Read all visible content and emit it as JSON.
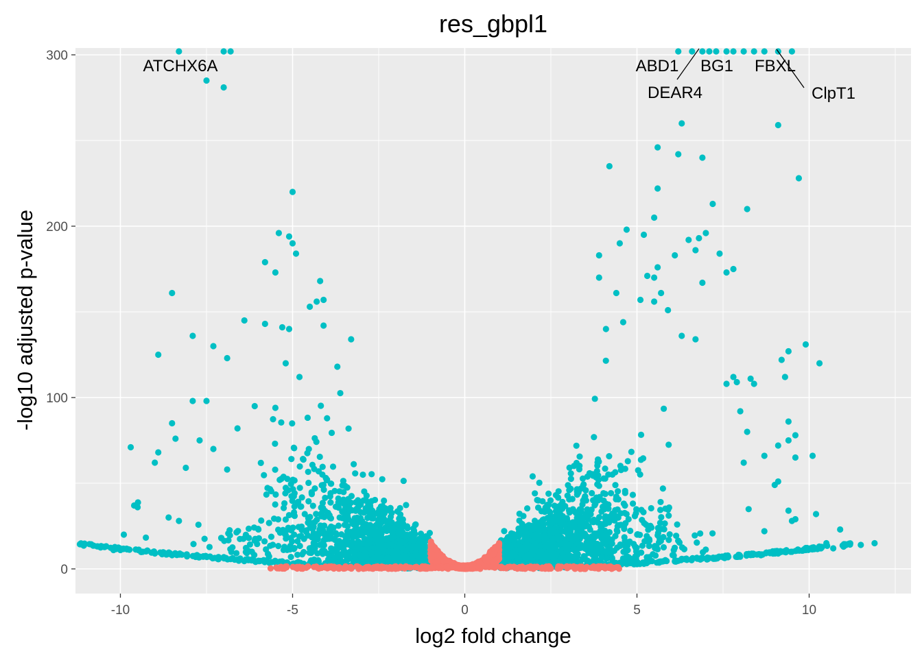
{
  "chart_data": {
    "type": "scatter",
    "title": "res_gbpl1",
    "xlabel": "log2 fold change",
    "ylabel": "-log10 adjusted p-value",
    "xlim": [
      -11.3,
      12.5
    ],
    "ylim": [
      -14,
      302
    ],
    "x_ticks": [
      -10,
      -5,
      0,
      5,
      10
    ],
    "x_tick_labels": [
      "-10",
      "-5",
      "0",
      "5",
      "10"
    ],
    "y_ticks": [
      0,
      100,
      200,
      300
    ],
    "y_tick_labels": [
      "0",
      "100",
      "200",
      "300"
    ],
    "grid": true,
    "legend": "none",
    "colors": {
      "significant": "#00BFC4",
      "not_significant": "#F8766D",
      "panel_background": "#EBEBEB",
      "grid_line": "#FFFFFF"
    },
    "labeled_points": [
      {
        "label": "ATCHX6A",
        "x": -8.2,
        "y": 304
      },
      {
        "label": "ABD1",
        "x": 6.9,
        "y": 304
      },
      {
        "label": "DEAR4",
        "x": 6.8,
        "y": 304
      },
      {
        "label": "BG1",
        "x": 7.2,
        "y": 304
      },
      {
        "label": "FBXL",
        "x": 9.1,
        "y": 304
      },
      {
        "label": "ClpT1",
        "x": 9.1,
        "y": 304
      }
    ],
    "significant_points": [
      [
        -7.5,
        285
      ],
      [
        -7.0,
        281
      ],
      [
        -5.0,
        220
      ],
      [
        -5.4,
        196
      ],
      [
        -5.1,
        194
      ],
      [
        -5.0,
        190
      ],
      [
        -4.9,
        184
      ],
      [
        -5.8,
        179
      ],
      [
        -5.5,
        173
      ],
      [
        -4.2,
        168
      ],
      [
        -8.5,
        161
      ],
      [
        -4.1,
        157
      ],
      [
        -4.3,
        156
      ],
      [
        -4.5,
        153
      ],
      [
        -6.4,
        145
      ],
      [
        -5.8,
        143
      ],
      [
        -4.1,
        142
      ],
      [
        -5.3,
        141
      ],
      [
        -5.1,
        140
      ],
      [
        -7.9,
        136
      ],
      [
        -3.3,
        134
      ],
      [
        -7.3,
        130
      ],
      [
        -6.9,
        123
      ],
      [
        -8.9,
        125
      ],
      [
        -4.8,
        112
      ],
      [
        -3.7,
        118
      ],
      [
        -5.2,
        120
      ],
      [
        -7.9,
        98
      ],
      [
        -7.5,
        98
      ],
      [
        -6.1,
        95
      ],
      [
        -5.5,
        94
      ],
      [
        -8.5,
        85
      ],
      [
        -6.6,
        82
      ],
      [
        -8.4,
        76
      ],
      [
        -7.7,
        75
      ],
      [
        -9.7,
        71
      ],
      [
        -8.9,
        68
      ],
      [
        -7.3,
        70
      ],
      [
        -9.0,
        62
      ],
      [
        -8.1,
        59
      ],
      [
        -6.9,
        58
      ],
      [
        -9.6,
        37
      ],
      [
        -9.5,
        36
      ],
      [
        -8.6,
        30
      ],
      [
        -8.3,
        28
      ],
      [
        -9.9,
        20
      ],
      [
        -10.2,
        11
      ],
      [
        -10.0,
        11
      ],
      [
        -9.4,
        10
      ],
      [
        -9.0,
        9
      ],
      [
        -8.5,
        8
      ],
      [
        4.2,
        235
      ],
      [
        6.3,
        260
      ],
      [
        9.1,
        259
      ],
      [
        5.6,
        246
      ],
      [
        6.2,
        242
      ],
      [
        6.9,
        240
      ],
      [
        9.7,
        228
      ],
      [
        5.6,
        222
      ],
      [
        7.2,
        213
      ],
      [
        8.2,
        210
      ],
      [
        5.5,
        205
      ],
      [
        4.7,
        198
      ],
      [
        5.2,
        195
      ],
      [
        7.0,
        196
      ],
      [
        6.5,
        192
      ],
      [
        6.8,
        193
      ],
      [
        4.5,
        190
      ],
      [
        6.7,
        186
      ],
      [
        7.4,
        184
      ],
      [
        6.1,
        183
      ],
      [
        3.9,
        183
      ],
      [
        5.6,
        176
      ],
      [
        7.8,
        175
      ],
      [
        7.6,
        173
      ],
      [
        5.3,
        171
      ],
      [
        5.5,
        170
      ],
      [
        6.9,
        167
      ],
      [
        3.9,
        170
      ],
      [
        5.7,
        161
      ],
      [
        4.4,
        161
      ],
      [
        5.1,
        157
      ],
      [
        5.5,
        156
      ],
      [
        5.9,
        151
      ],
      [
        4.6,
        144
      ],
      [
        4.1,
        140
      ],
      [
        6.3,
        136
      ],
      [
        6.7,
        134
      ],
      [
        9.9,
        131
      ],
      [
        9.4,
        127
      ],
      [
        10.3,
        120
      ],
      [
        9.2,
        122
      ],
      [
        9.3,
        112
      ],
      [
        8.3,
        111
      ],
      [
        8.4,
        108
      ],
      [
        7.8,
        112
      ],
      [
        7.9,
        109
      ],
      [
        7.6,
        108
      ],
      [
        8.0,
        92
      ],
      [
        9.4,
        86
      ],
      [
        8.2,
        80
      ],
      [
        9.6,
        78
      ],
      [
        9.4,
        75
      ],
      [
        9.1,
        72
      ],
      [
        10.1,
        66
      ],
      [
        9.6,
        65
      ],
      [
        8.7,
        66
      ],
      [
        8.1,
        62
      ],
      [
        9.1,
        51
      ],
      [
        9.0,
        49
      ],
      [
        10.2,
        32
      ],
      [
        9.4,
        34
      ],
      [
        9.6,
        29
      ],
      [
        9.5,
        28
      ],
      [
        8.7,
        22
      ],
      [
        10.9,
        23
      ],
      [
        10.5,
        15
      ],
      [
        11.5,
        14
      ],
      [
        11.9,
        15
      ],
      [
        11.0,
        13
      ],
      [
        10.7,
        12
      ],
      [
        10.3,
        12
      ],
      [
        9.9,
        11
      ],
      [
        9.5,
        10
      ],
      [
        9.1,
        9
      ],
      [
        8.6,
        8
      ]
    ],
    "significant_top_edge": [
      [
        -8.3,
        303
      ],
      [
        -7.0,
        303
      ],
      [
        -6.8,
        303
      ],
      [
        6.2,
        303
      ],
      [
        6.6,
        303
      ],
      [
        6.9,
        303
      ],
      [
        7.1,
        303
      ],
      [
        7.3,
        303
      ],
      [
        7.6,
        303
      ],
      [
        7.8,
        303
      ],
      [
        8.1,
        303
      ],
      [
        8.4,
        303
      ],
      [
        8.7,
        303
      ],
      [
        9.1,
        303
      ],
      [
        9.5,
        303
      ]
    ]
  }
}
